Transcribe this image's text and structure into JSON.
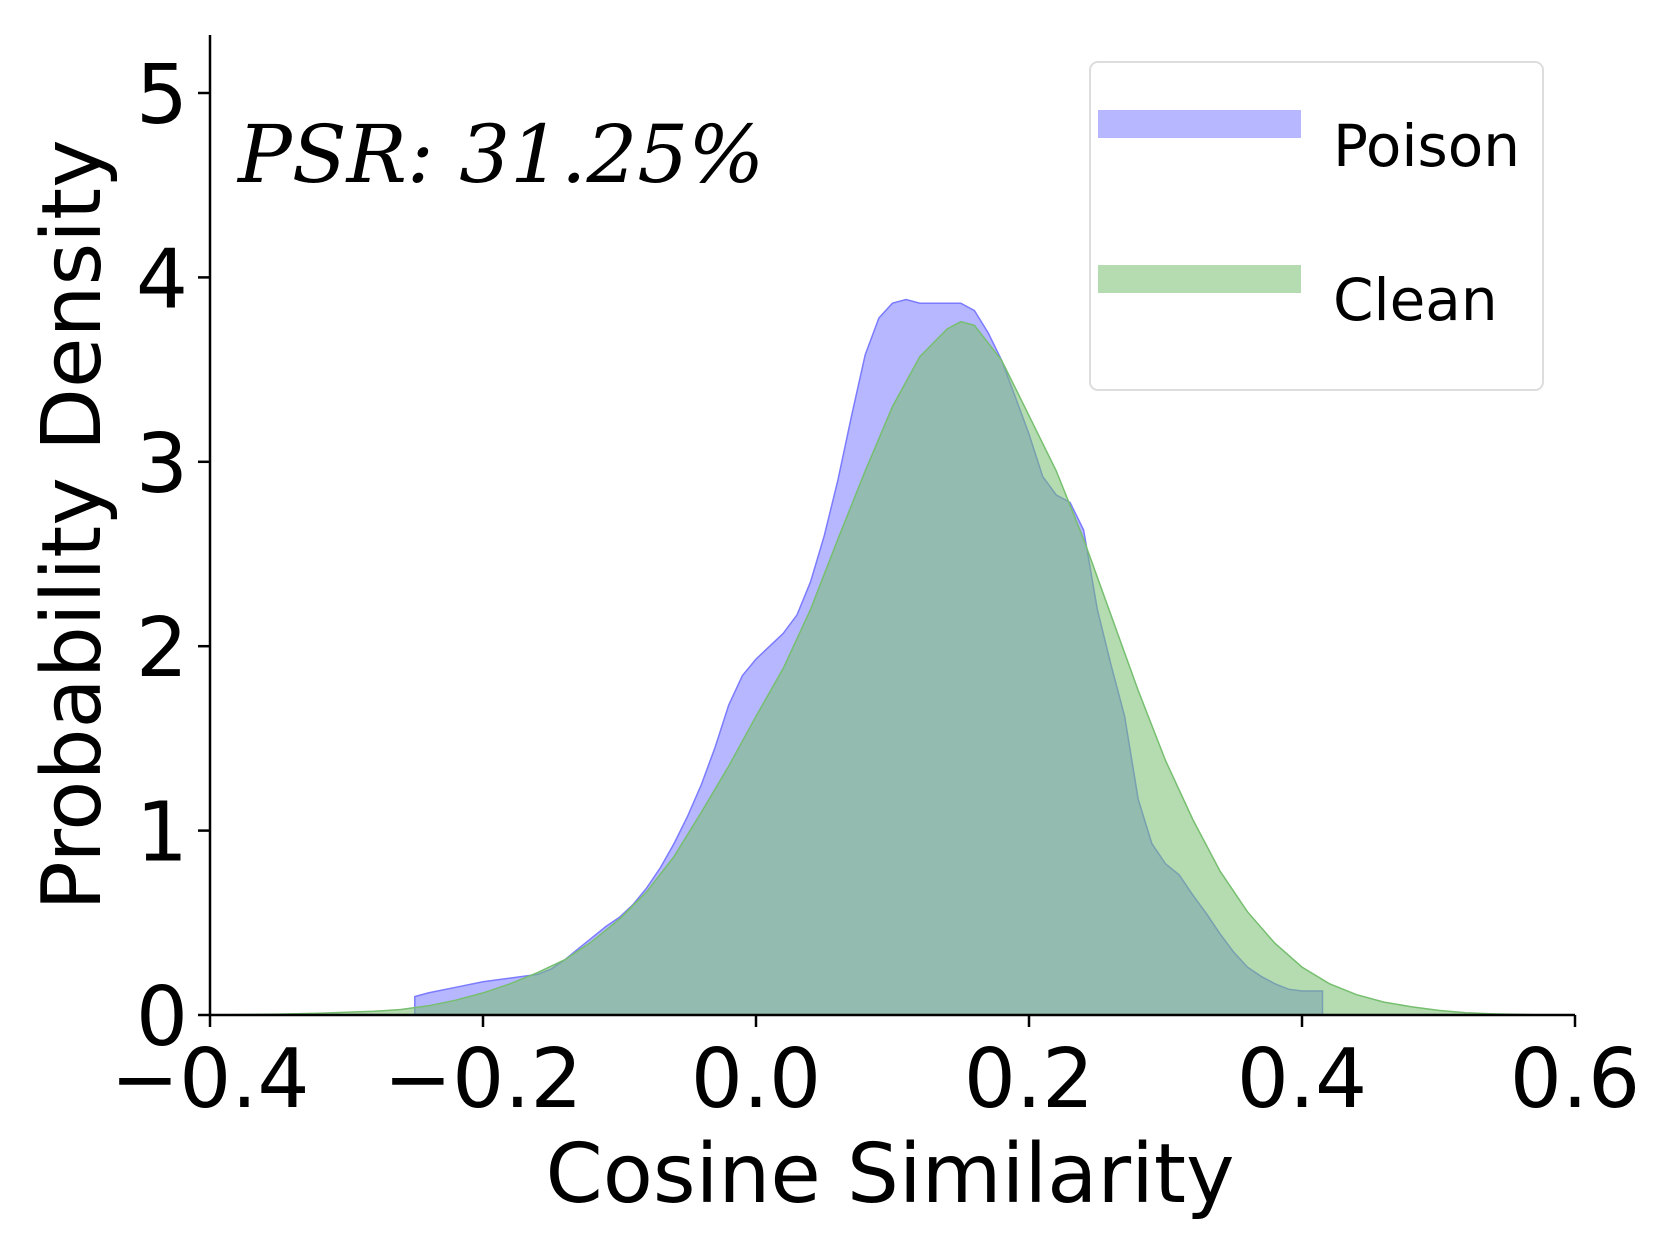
{
  "chart_data": {
    "type": "area",
    "xlabel": "Cosine Similarity",
    "ylabel": "Probability Density",
    "xlim": [
      -0.4,
      0.6
    ],
    "ylim": [
      0,
      5.5
    ],
    "xticks": [
      -0.4,
      -0.2,
      0.0,
      0.2,
      0.4,
      0.6
    ],
    "xtick_labels": [
      "−0.4",
      "−0.2",
      "0.0",
      "0.2",
      "0.4",
      "0.6"
    ],
    "yticks": [
      0,
      1,
      2,
      3,
      4,
      5
    ],
    "ytick_labels": [
      "0",
      "1",
      "2",
      "3",
      "4",
      "5"
    ],
    "grid": false,
    "legend_position": "top-right",
    "annotation": "PSR: 31.25%",
    "series": [
      {
        "name": "Poison",
        "color": "#7b7bff",
        "opacity": 0.55,
        "x": [
          -0.25,
          -0.24,
          -0.22,
          -0.2,
          -0.18,
          -0.16,
          -0.15,
          -0.14,
          -0.13,
          -0.12,
          -0.11,
          -0.1,
          -0.09,
          -0.08,
          -0.07,
          -0.06,
          -0.05,
          -0.04,
          -0.03,
          -0.02,
          -0.01,
          0.0,
          0.01,
          0.02,
          0.03,
          0.04,
          0.05,
          0.06,
          0.07,
          0.08,
          0.09,
          0.1,
          0.11,
          0.12,
          0.13,
          0.14,
          0.15,
          0.16,
          0.17,
          0.18,
          0.19,
          0.2,
          0.21,
          0.22,
          0.23,
          0.24,
          0.25,
          0.26,
          0.27,
          0.28,
          0.29,
          0.3,
          0.31,
          0.32,
          0.33,
          0.34,
          0.35,
          0.36,
          0.37,
          0.38,
          0.39,
          0.4,
          0.41,
          0.415
        ],
        "y": [
          0.1,
          0.12,
          0.15,
          0.18,
          0.2,
          0.22,
          0.25,
          0.3,
          0.36,
          0.42,
          0.48,
          0.53,
          0.6,
          0.69,
          0.8,
          0.93,
          1.08,
          1.25,
          1.45,
          1.68,
          1.84,
          1.93,
          2.0,
          2.07,
          2.17,
          2.35,
          2.6,
          2.9,
          3.25,
          3.58,
          3.78,
          3.86,
          3.88,
          3.86,
          3.86,
          3.86,
          3.86,
          3.82,
          3.7,
          3.55,
          3.35,
          3.15,
          2.92,
          2.82,
          2.78,
          2.63,
          2.2,
          1.9,
          1.62,
          1.17,
          0.93,
          0.82,
          0.76,
          0.65,
          0.55,
          0.44,
          0.34,
          0.26,
          0.21,
          0.17,
          0.14,
          0.13,
          0.13,
          0.13
        ]
      },
      {
        "name": "Clean",
        "color": "#77bf70",
        "opacity": 0.55,
        "x": [
          -0.4,
          -0.35,
          -0.32,
          -0.3,
          -0.28,
          -0.26,
          -0.24,
          -0.22,
          -0.2,
          -0.18,
          -0.16,
          -0.14,
          -0.12,
          -0.1,
          -0.08,
          -0.06,
          -0.04,
          -0.02,
          0.0,
          0.02,
          0.04,
          0.06,
          0.08,
          0.1,
          0.12,
          0.14,
          0.15,
          0.16,
          0.18,
          0.2,
          0.22,
          0.24,
          0.26,
          0.28,
          0.3,
          0.32,
          0.34,
          0.36,
          0.38,
          0.4,
          0.42,
          0.44,
          0.46,
          0.48,
          0.5,
          0.52,
          0.54,
          0.56,
          0.58
        ],
        "y": [
          0.0,
          0.005,
          0.01,
          0.015,
          0.02,
          0.03,
          0.05,
          0.08,
          0.12,
          0.17,
          0.23,
          0.3,
          0.4,
          0.52,
          0.67,
          0.86,
          1.1,
          1.35,
          1.62,
          1.88,
          2.2,
          2.58,
          2.95,
          3.3,
          3.57,
          3.72,
          3.76,
          3.74,
          3.55,
          3.25,
          2.95,
          2.58,
          2.17,
          1.76,
          1.38,
          1.06,
          0.78,
          0.56,
          0.39,
          0.26,
          0.17,
          0.11,
          0.07,
          0.045,
          0.025,
          0.012,
          0.006,
          0.003,
          0.0
        ]
      }
    ]
  }
}
